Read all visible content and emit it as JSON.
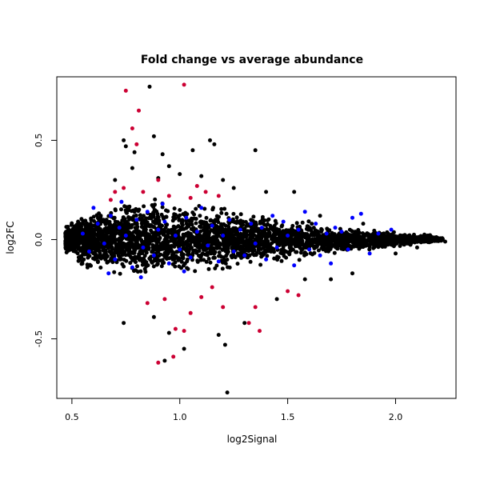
{
  "chart_data": {
    "type": "scatter",
    "title": "Fold change vs average abundance",
    "xlabel": "log2Signal",
    "ylabel": "log2FC",
    "xlim": [
      0.43,
      2.28
    ],
    "ylim": [
      -0.8,
      0.82
    ],
    "x_ticks": [
      0.5,
      1.0,
      1.5,
      2.0
    ],
    "x_tick_labels": [
      "0.5",
      "1.0",
      "1.5",
      "2.0"
    ],
    "y_ticks": [
      -0.5,
      0.0,
      0.5
    ],
    "y_tick_labels": [
      "-0.5",
      "0.0",
      "0.5"
    ],
    "grid": false,
    "legend": "none",
    "colors": {
      "background": "#000000",
      "highlight_down": "#0000ff",
      "highlight_up": "#cc0033"
    },
    "series": [
      {
        "color": "#000000",
        "points": [
          [
            0.75,
            0.47
          ],
          [
            0.79,
            0.44
          ],
          [
            0.88,
            0.52
          ],
          [
            0.92,
            0.43
          ],
          [
            1.06,
            0.45
          ],
          [
            1.14,
            0.5
          ],
          [
            1.16,
            0.48
          ],
          [
            1.35,
            0.45
          ],
          [
            0.86,
            0.77
          ],
          [
            0.74,
            0.5
          ],
          [
            0.9,
            0.31
          ],
          [
            1.0,
            0.33
          ],
          [
            1.1,
            0.32
          ],
          [
            1.25,
            0.26
          ],
          [
            1.4,
            0.24
          ],
          [
            0.7,
            0.3
          ],
          [
            0.78,
            0.36
          ],
          [
            1.2,
            0.3
          ],
          [
            0.95,
            0.37
          ],
          [
            1.53,
            0.24
          ],
          [
            0.88,
            -0.39
          ],
          [
            0.95,
            -0.47
          ],
          [
            1.02,
            -0.55
          ],
          [
            1.18,
            -0.48
          ],
          [
            1.21,
            -0.53
          ],
          [
            0.93,
            -0.61
          ],
          [
            1.22,
            -0.77
          ],
          [
            0.74,
            -0.42
          ],
          [
            1.3,
            -0.42
          ],
          [
            1.45,
            -0.3
          ],
          [
            1.58,
            -0.2
          ],
          [
            1.7,
            -0.2
          ],
          [
            1.8,
            -0.17
          ],
          [
            2.0,
            -0.07
          ],
          [
            2.1,
            -0.04
          ],
          [
            2.2,
            0.0
          ],
          [
            2.23,
            -0.01
          ],
          [
            2.15,
            0.02
          ],
          [
            1.65,
            0.12
          ],
          [
            1.85,
            0.08
          ]
        ],
        "cloud_envelope": {
          "x": [
            0.47,
            0.55,
            0.65,
            0.75,
            0.85,
            0.95,
            1.05,
            1.15,
            1.25,
            1.35,
            1.45,
            1.55,
            1.65,
            1.75,
            1.85,
            1.95,
            2.05,
            2.15,
            2.22
          ],
          "upper": [
            0.07,
            0.14,
            0.19,
            0.22,
            0.24,
            0.22,
            0.2,
            0.19,
            0.17,
            0.15,
            0.13,
            0.12,
            0.09,
            0.07,
            0.06,
            0.05,
            0.04,
            0.03,
            0.01
          ],
          "lower": [
            -0.07,
            -0.17,
            -0.2,
            -0.22,
            -0.23,
            -0.22,
            -0.2,
            -0.18,
            -0.16,
            -0.15,
            -0.13,
            -0.11,
            -0.09,
            -0.08,
            -0.06,
            -0.05,
            -0.04,
            -0.02,
            -0.01
          ]
        }
      },
      {
        "color": "#0000ff",
        "points": [
          [
            0.55,
            0.03
          ],
          [
            0.58,
            -0.06
          ],
          [
            0.62,
            0.08
          ],
          [
            0.65,
            -0.02
          ],
          [
            0.68,
            0.12
          ],
          [
            0.7,
            -0.1
          ],
          [
            0.72,
            0.06
          ],
          [
            0.75,
            0.02
          ],
          [
            0.78,
            -0.14
          ],
          [
            0.8,
            0.1
          ],
          [
            0.83,
            -0.04
          ],
          [
            0.85,
            0.14
          ],
          [
            0.88,
            -0.08
          ],
          [
            0.9,
            0.05
          ],
          [
            0.93,
            0.09
          ],
          [
            0.95,
            -0.12
          ],
          [
            0.98,
            0.02
          ],
          [
            1.0,
            -0.05
          ],
          [
            1.03,
            0.11
          ],
          [
            1.05,
            -0.09
          ],
          [
            1.08,
            0.04
          ],
          [
            1.1,
            0.16
          ],
          [
            1.13,
            -0.03
          ],
          [
            1.15,
            0.07
          ],
          [
            1.18,
            -0.11
          ],
          [
            1.2,
            0.02
          ],
          [
            1.23,
            0.1
          ],
          [
            1.25,
            -0.06
          ],
          [
            1.28,
            0.05
          ],
          [
            1.3,
            -0.08
          ],
          [
            1.33,
            0.08
          ],
          [
            1.35,
            -0.02
          ],
          [
            1.38,
            0.06
          ],
          [
            1.4,
            -0.1
          ],
          [
            1.43,
            0.12
          ],
          [
            1.45,
            -0.04
          ],
          [
            1.48,
            0.09
          ],
          [
            1.5,
            0.02
          ],
          [
            1.53,
            -0.13
          ],
          [
            1.55,
            0.05
          ],
          [
            1.58,
            0.14
          ],
          [
            1.6,
            -0.05
          ],
          [
            1.63,
            0.08
          ],
          [
            1.65,
            -0.08
          ],
          [
            1.68,
            0.03
          ],
          [
            1.7,
            -0.12
          ],
          [
            1.72,
            0.06
          ],
          [
            1.75,
            0.04
          ],
          [
            1.78,
            -0.05
          ],
          [
            1.8,
            0.11
          ],
          [
            1.84,
            0.13
          ],
          [
            1.88,
            -0.07
          ],
          [
            1.92,
            0.03
          ],
          [
            1.98,
            0.05
          ],
          [
            0.6,
            0.16
          ],
          [
            0.67,
            -0.17
          ],
          [
            0.73,
            0.19
          ],
          [
            0.82,
            -0.19
          ],
          [
            0.92,
            0.18
          ],
          [
            1.02,
            -0.16
          ]
        ]
      },
      {
        "color": "#cc0033",
        "points": [
          [
            0.75,
            0.75
          ],
          [
            1.02,
            0.78
          ],
          [
            0.81,
            0.65
          ],
          [
            0.78,
            0.56
          ],
          [
            0.8,
            0.48
          ],
          [
            0.7,
            0.24
          ],
          [
            0.74,
            0.26
          ],
          [
            0.83,
            0.24
          ],
          [
            0.9,
            0.3
          ],
          [
            0.95,
            0.22
          ],
          [
            1.08,
            0.27
          ],
          [
            1.12,
            0.24
          ],
          [
            1.18,
            0.22
          ],
          [
            0.68,
            0.2
          ],
          [
            1.05,
            0.21
          ],
          [
            0.9,
            -0.62
          ],
          [
            0.97,
            -0.59
          ],
          [
            0.98,
            -0.45
          ],
          [
            1.02,
            -0.46
          ],
          [
            1.05,
            -0.37
          ],
          [
            1.1,
            -0.29
          ],
          [
            1.2,
            -0.34
          ],
          [
            1.32,
            -0.42
          ],
          [
            1.37,
            -0.46
          ],
          [
            1.35,
            -0.34
          ],
          [
            1.5,
            -0.26
          ],
          [
            1.55,
            -0.28
          ],
          [
            0.93,
            -0.3
          ],
          [
            0.85,
            -0.32
          ],
          [
            1.15,
            -0.24
          ]
        ]
      }
    ]
  }
}
